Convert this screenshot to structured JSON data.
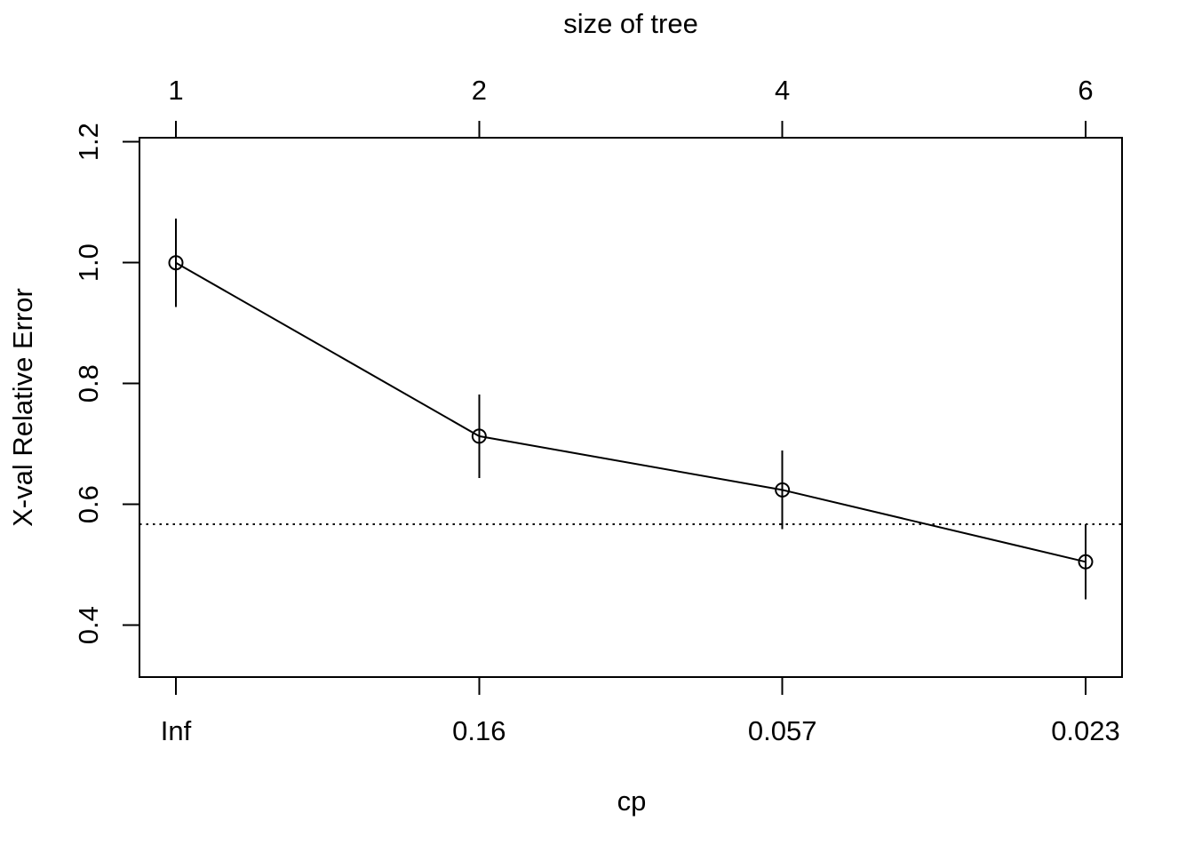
{
  "chart_data": {
    "type": "line",
    "title": "size of tree",
    "xlabel": "cp",
    "ylabel": "X-val Relative Error",
    "top_axis": {
      "label": "size of tree",
      "tick_labels": [
        "1",
        "2",
        "4",
        "6"
      ]
    },
    "bottom_axis": {
      "label": "cp",
      "tick_labels": [
        "Inf",
        "0.16",
        "0.057",
        "0.023"
      ]
    },
    "y_axis": {
      "tick_labels": [
        "0.4",
        "0.6",
        "0.8",
        "1.0",
        "1.2"
      ],
      "tick_values": [
        0.4,
        0.6,
        0.8,
        1.0,
        1.2
      ]
    },
    "series": [
      {
        "name": "xval-relative-error",
        "tree_size": [
          1,
          2,
          4,
          6
        ],
        "cp": [
          "Inf",
          "0.16",
          "0.057",
          "0.023"
        ],
        "values": [
          1.0,
          0.713,
          0.624,
          0.505
        ],
        "std": [
          0.073,
          0.069,
          0.065,
          0.062
        ],
        "marker": "open-circle"
      }
    ],
    "threshold_line": {
      "value": 0.567,
      "style": "dotted"
    },
    "grid": false,
    "legend": "none",
    "colors": {
      "foreground": "#000000",
      "background": "#ffffff"
    }
  }
}
